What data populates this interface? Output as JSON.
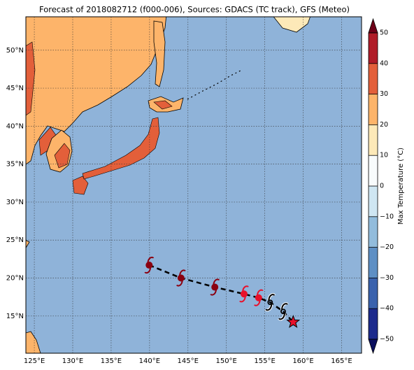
{
  "title": "Forecast of 2018082712 (f000-006), Sources: GDACS (TC track), GFS (Meteo)",
  "map": {
    "lonlim": [
      123.9,
      167.6
    ],
    "latlim": [
      10.1,
      54.4
    ],
    "ocean_color": "#8fb3d9",
    "lonticks": [
      {
        "value": 125,
        "label": "125°E"
      },
      {
        "value": 130,
        "label": "130°E"
      },
      {
        "value": 135,
        "label": "135°E"
      },
      {
        "value": 140,
        "label": "140°E"
      },
      {
        "value": 145,
        "label": "145°E"
      },
      {
        "value": 150,
        "label": "150°E"
      },
      {
        "value": 155,
        "label": "155°E"
      },
      {
        "value": 160,
        "label": "160°E"
      },
      {
        "value": 165,
        "label": "165°E"
      }
    ],
    "latticks": [
      {
        "value": 15,
        "label": "15°N"
      },
      {
        "value": 20,
        "label": "20°N"
      },
      {
        "value": 25,
        "label": "25°N"
      },
      {
        "value": 30,
        "label": "30°N"
      },
      {
        "value": 35,
        "label": "35°N"
      },
      {
        "value": 40,
        "label": "40°N"
      },
      {
        "value": 45,
        "label": "45°N"
      },
      {
        "value": 50,
        "label": "50°N"
      }
    ],
    "grid": true
  },
  "track": {
    "lon": [
      139.95,
      144.1,
      148.5,
      152.3,
      154.2,
      155.7,
      157.4,
      158.7
    ],
    "lat": [
      21.7,
      20.0,
      18.8,
      17.9,
      17.4,
      16.8,
      15.6,
      14.2
    ],
    "colors": [
      "#8b0010",
      "#8b0010",
      "#8b0010",
      "#e8102a",
      "#e8102a",
      "#000000",
      "#000000",
      "#e8102a"
    ],
    "markers": [
      "storm",
      "storm",
      "storm",
      "storm",
      "storm",
      "swirl",
      "swirl",
      "star"
    ]
  },
  "colorbar": {
    "label": "Max Temperature (°C)",
    "lim": [
      -50,
      50
    ],
    "ticks": [
      {
        "value": -50,
        "label": "−50"
      },
      {
        "value": -40,
        "label": "−40"
      },
      {
        "value": -30,
        "label": "−30"
      },
      {
        "value": -20,
        "label": "−20"
      },
      {
        "value": -10,
        "label": "−10"
      },
      0,
      10,
      20,
      30,
      40,
      50
    ],
    "colors": [
      "#1c2a8c",
      "#3a62ad",
      "#5e8fc4",
      "#92bcdc",
      "#cfe6f2",
      "#f8fbfc",
      "#fde9b8",
      "#fdb46a",
      "#e35f3a",
      "#b01c28"
    ],
    "extend_colors": [
      "#0b0f5e",
      "#6e0018"
    ]
  }
}
